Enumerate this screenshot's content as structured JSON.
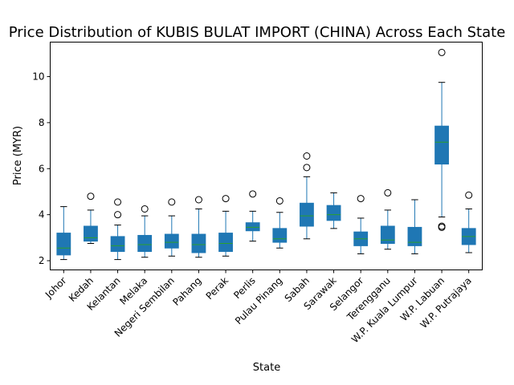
{
  "chart_data": {
    "type": "box",
    "title": "Price Distribution of KUBIS BULAT IMPORT (CHINA) Across Each State",
    "xlabel": "State",
    "ylabel": "Price (MYR)",
    "ylim": [
      1.6,
      11.5
    ],
    "yticks": [
      2,
      4,
      6,
      8,
      10
    ],
    "grid": false,
    "colors": {
      "box": "#1f77b4",
      "median": "#2ca02c",
      "whisker": "#1f77b4",
      "outlier": "#000000"
    },
    "categories": [
      "Johor",
      "Kedah",
      "Kelantan",
      "Melaka",
      "Negeri Sembilan",
      "Pahang",
      "Perak",
      "Perlis",
      "Pulau Pinang",
      "Sabah",
      "Sarawak",
      "Selangor",
      "Terengganu",
      "W.P. Kuala Lumpur",
      "W.P. Labuan",
      "W.P. Putrajaya"
    ],
    "boxes": [
      {
        "category": "Johor",
        "whislo": 2.05,
        "q1": 2.25,
        "med": 2.55,
        "q3": 3.2,
        "whishi": 4.35,
        "fliers": []
      },
      {
        "category": "Kedah",
        "whislo": 2.75,
        "q1": 2.85,
        "med": 3.0,
        "q3": 3.5,
        "whishi": 4.2,
        "fliers": [
          4.8
        ]
      },
      {
        "category": "Kelantan",
        "whislo": 2.05,
        "q1": 2.4,
        "med": 2.65,
        "q3": 3.05,
        "whishi": 3.55,
        "fliers": [
          4.0,
          4.55
        ]
      },
      {
        "category": "Melaka",
        "whislo": 2.15,
        "q1": 2.4,
        "med": 2.7,
        "q3": 3.1,
        "whishi": 3.95,
        "fliers": [
          4.25
        ]
      },
      {
        "category": "Negeri Sembilan",
        "whislo": 2.2,
        "q1": 2.55,
        "med": 2.8,
        "q3": 3.15,
        "whishi": 3.95,
        "fliers": [
          4.55
        ]
      },
      {
        "category": "Pahang",
        "whislo": 2.15,
        "q1": 2.35,
        "med": 2.7,
        "q3": 3.15,
        "whishi": 4.25,
        "fliers": [
          4.65
        ]
      },
      {
        "category": "Perak",
        "whislo": 2.2,
        "q1": 2.4,
        "med": 2.75,
        "q3": 3.2,
        "whishi": 4.15,
        "fliers": [
          4.7
        ]
      },
      {
        "category": "Perlis",
        "whislo": 2.85,
        "q1": 3.3,
        "med": 3.45,
        "q3": 3.65,
        "whishi": 4.15,
        "fliers": [
          4.9
        ]
      },
      {
        "category": "Pulau Pinang",
        "whislo": 2.55,
        "q1": 2.8,
        "med": 2.95,
        "q3": 3.4,
        "whishi": 4.1,
        "fliers": [
          4.6
        ]
      },
      {
        "category": "Sabah",
        "whislo": 2.95,
        "q1": 3.5,
        "med": 3.95,
        "q3": 4.5,
        "whishi": 5.65,
        "fliers": [
          6.05,
          6.55
        ]
      },
      {
        "category": "Sarawak",
        "whislo": 3.4,
        "q1": 3.75,
        "med": 4.0,
        "q3": 4.4,
        "whishi": 4.95,
        "fliers": []
      },
      {
        "category": "Selangor",
        "whislo": 2.3,
        "q1": 2.65,
        "med": 2.95,
        "q3": 3.25,
        "whishi": 3.85,
        "fliers": [
          4.7
        ]
      },
      {
        "category": "Terengganu",
        "whislo": 2.5,
        "q1": 2.75,
        "med": 2.9,
        "q3": 3.5,
        "whishi": 4.2,
        "fliers": [
          4.95
        ]
      },
      {
        "category": "W.P. Kuala Lumpur",
        "whislo": 2.3,
        "q1": 2.65,
        "med": 2.8,
        "q3": 3.45,
        "whishi": 4.65,
        "fliers": []
      },
      {
        "category": "W.P. Labuan",
        "whislo": 3.9,
        "q1": 6.2,
        "med": 7.15,
        "q3": 7.85,
        "whishi": 9.75,
        "fliers": [
          3.45,
          3.5,
          11.05
        ]
      },
      {
        "category": "W.P. Putrajaya",
        "whislo": 2.35,
        "q1": 2.7,
        "med": 3.05,
        "q3": 3.4,
        "whishi": 4.25,
        "fliers": [
          4.85
        ]
      }
    ]
  }
}
